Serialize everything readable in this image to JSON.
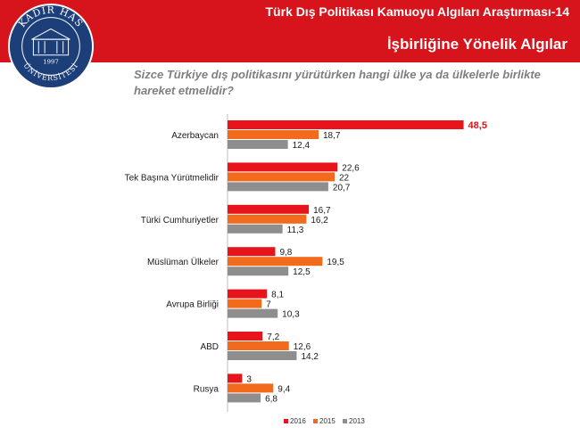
{
  "header": {
    "subtitle": "Türk Dış Politikası Kamuoyu Algıları Araştırması-14",
    "title": "İşbirliğine Yönelik Algılar"
  },
  "logo": {
    "text_top": "KADİR HAS",
    "text_bottom": "ÜNİVERSİTESİ",
    "year": "1997",
    "color": "#1c3f7a"
  },
  "question": "Sizce Türkiye dış politikasını yürütürken hangi ülke ya da ülkelerle birlikte hareket etmelidir?",
  "colors": {
    "header_bg": "#d7131c",
    "s2016": "#e8141b",
    "s2015": "#f26a1b",
    "s2013": "#8e8e8e"
  },
  "chart_data": {
    "type": "bar",
    "orientation": "horizontal",
    "categories": [
      "Azerbaycan",
      "Tek Başına Yürütmelidir",
      "Türki Cumhuriyetler",
      "Müslüman Ülkeler",
      "Avrupa Birliği",
      "ABD",
      "Rusya"
    ],
    "series": [
      {
        "name": "2016",
        "values": [
          48.5,
          22.6,
          16.7,
          9.8,
          8.1,
          7.2,
          3
        ],
        "labels": [
          "48,5",
          "22,6",
          "16,7",
          "9,8",
          "8,1",
          "7,2",
          "3"
        ],
        "color": "#e8141b"
      },
      {
        "name": "2015",
        "values": [
          18.7,
          22,
          16.2,
          19.5,
          7,
          12.6,
          9.4
        ],
        "labels": [
          "18,7",
          "22",
          "16,2",
          "19,5",
          "7",
          "12,6",
          "9,4"
        ],
        "color": "#f26a1b"
      },
      {
        "name": "2013",
        "values": [
          12.4,
          20.7,
          11.3,
          12.5,
          10.3,
          14.2,
          6.8
        ],
        "labels": [
          "12,4",
          "20,7",
          "11,3",
          "12,5",
          "10,3",
          "14,2",
          "6,8"
        ],
        "color": "#8e8e8e"
      }
    ],
    "highlight": {
      "series": 0,
      "category": 0
    },
    "xlim": [
      0,
      55
    ],
    "legend_position": "bottom-center"
  }
}
